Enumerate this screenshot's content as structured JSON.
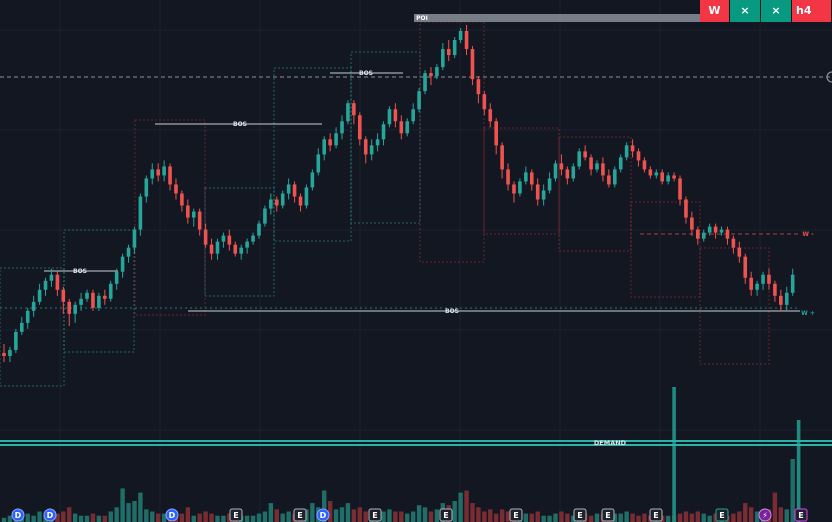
{
  "toolbar": {
    "chips": [
      {
        "label": "W",
        "kind": "w"
      },
      {
        "label": "×",
        "kind": "x"
      },
      {
        "label": "×",
        "kind": "x"
      },
      {
        "label": "h4",
        "kind": "h"
      }
    ]
  },
  "colors": {
    "background": "#131722",
    "grid": "#1e2230",
    "bull": "#26a69a",
    "bear": "#ef5350",
    "vol_bull": "#1f6e67",
    "vol_bear": "#7a2c33",
    "zone_bull": "#26a69a",
    "zone_bear": "#b02a3a",
    "demand": "#2bb3a8",
    "poi": "#8a8f99"
  },
  "chart_data": {
    "type": "candlestick",
    "title": "",
    "y_scale": "price (no axis shown)",
    "grid": true,
    "candles": [
      [
        89,
        88,
        92,
        86
      ],
      [
        88,
        90,
        91,
        86
      ],
      [
        90,
        96,
        97,
        89
      ],
      [
        96,
        99,
        101,
        95
      ],
      [
        99,
        103,
        104,
        97
      ],
      [
        103,
        106,
        108,
        101
      ],
      [
        106,
        110,
        112,
        105
      ],
      [
        110,
        113,
        114,
        108
      ],
      [
        113,
        115,
        117,
        111
      ],
      [
        115,
        110,
        116,
        108
      ],
      [
        110,
        106,
        111,
        102
      ],
      [
        106,
        102,
        107,
        98
      ],
      [
        102,
        105,
        106,
        99
      ],
      [
        105,
        107,
        109,
        103
      ],
      [
        107,
        109,
        110,
        106
      ],
      [
        109,
        104,
        110,
        103
      ],
      [
        104,
        108,
        109,
        103
      ],
      [
        108,
        107,
        110,
        105
      ],
      [
        107,
        112,
        113,
        106
      ],
      [
        112,
        116,
        117,
        110
      ],
      [
        116,
        121,
        122,
        114
      ],
      [
        121,
        124,
        125,
        119
      ],
      [
        124,
        130,
        131,
        122
      ],
      [
        130,
        141,
        142,
        128
      ],
      [
        141,
        147,
        148,
        139
      ],
      [
        147,
        150,
        152,
        145
      ],
      [
        150,
        148,
        152,
        146
      ],
      [
        148,
        151,
        153,
        146
      ],
      [
        151,
        145,
        152,
        143
      ],
      [
        145,
        142,
        147,
        140
      ],
      [
        142,
        138,
        143,
        136
      ],
      [
        138,
        134,
        140,
        132
      ],
      [
        134,
        136,
        137,
        131
      ],
      [
        136,
        130,
        137,
        128
      ],
      [
        130,
        125,
        132,
        124
      ],
      [
        125,
        122,
        127,
        120
      ],
      [
        122,
        126,
        127,
        120
      ],
      [
        126,
        128,
        129,
        124
      ],
      [
        128,
        125,
        130,
        123
      ],
      [
        125,
        122,
        126,
        121
      ],
      [
        122,
        124,
        125,
        120
      ],
      [
        124,
        126,
        127,
        122
      ],
      [
        126,
        128,
        129,
        125
      ],
      [
        128,
        132,
        133,
        127
      ],
      [
        132,
        137,
        138,
        131
      ],
      [
        137,
        140,
        142,
        135
      ],
      [
        140,
        138,
        141,
        136
      ],
      [
        138,
        142,
        143,
        137
      ],
      [
        142,
        145,
        147,
        140
      ],
      [
        145,
        141,
        146,
        139
      ],
      [
        141,
        138,
        142,
        136
      ],
      [
        138,
        144,
        145,
        137
      ],
      [
        144,
        149,
        150,
        143
      ],
      [
        149,
        155,
        157,
        148
      ],
      [
        155,
        160,
        161,
        153
      ],
      [
        160,
        158,
        162,
        156
      ],
      [
        158,
        162,
        164,
        157
      ],
      [
        162,
        166,
        168,
        160
      ],
      [
        166,
        172,
        173,
        165
      ],
      [
        172,
        168,
        173,
        165
      ],
      [
        168,
        160,
        169,
        158
      ],
      [
        160,
        155,
        161,
        152
      ],
      [
        155,
        158,
        160,
        153
      ],
      [
        158,
        160,
        162,
        156
      ],
      [
        160,
        165,
        166,
        158
      ],
      [
        165,
        170,
        171,
        164
      ],
      [
        170,
        166,
        172,
        164
      ],
      [
        166,
        162,
        168,
        160
      ],
      [
        162,
        166,
        167,
        161
      ],
      [
        166,
        170,
        172,
        165
      ],
      [
        170,
        176,
        177,
        169
      ],
      [
        176,
        182,
        183,
        175
      ],
      [
        182,
        181,
        184,
        178
      ],
      [
        181,
        184,
        185,
        180
      ],
      [
        184,
        190,
        192,
        183
      ],
      [
        190,
        188,
        193,
        186
      ],
      [
        188,
        193,
        194,
        187
      ],
      [
        193,
        196,
        197,
        192
      ],
      [
        196,
        190,
        198,
        188
      ],
      [
        190,
        180,
        191,
        178
      ],
      [
        180,
        175,
        181,
        172
      ],
      [
        175,
        170,
        176,
        168
      ],
      [
        170,
        166,
        172,
        164
      ],
      [
        166,
        158,
        167,
        155
      ],
      [
        158,
        150,
        159,
        147
      ],
      [
        150,
        145,
        152,
        143
      ],
      [
        145,
        142,
        146,
        139
      ],
      [
        142,
        146,
        147,
        141
      ],
      [
        146,
        149,
        151,
        145
      ],
      [
        149,
        145,
        150,
        143
      ],
      [
        145,
        140,
        147,
        138
      ],
      [
        140,
        143,
        145,
        138
      ],
      [
        143,
        147,
        149,
        142
      ],
      [
        147,
        152,
        153,
        146
      ],
      [
        152,
        150,
        155,
        148
      ],
      [
        150,
        147,
        151,
        145
      ],
      [
        147,
        151,
        152,
        146
      ],
      [
        151,
        156,
        157,
        150
      ],
      [
        156,
        154,
        158,
        153
      ],
      [
        154,
        150,
        155,
        148
      ],
      [
        150,
        152,
        153,
        149
      ],
      [
        152,
        148,
        154,
        146
      ],
      [
        148,
        145,
        150,
        144
      ],
      [
        145,
        150,
        151,
        144
      ],
      [
        150,
        154,
        155,
        149
      ],
      [
        154,
        158,
        159,
        153
      ],
      [
        158,
        156,
        160,
        154
      ],
      [
        156,
        153,
        157,
        151
      ],
      [
        153,
        150,
        154,
        149
      ],
      [
        150,
        148,
        151,
        147
      ],
      [
        148,
        149,
        150,
        147
      ],
      [
        149,
        146,
        150,
        145
      ],
      [
        146,
        148,
        149,
        145
      ],
      [
        148,
        147,
        149,
        146
      ],
      [
        147,
        140,
        148,
        138
      ],
      [
        140,
        134,
        141,
        132
      ],
      [
        134,
        130,
        136,
        128
      ],
      [
        130,
        127,
        131,
        125
      ],
      [
        127,
        129,
        130,
        126
      ],
      [
        129,
        131,
        132,
        128
      ],
      [
        131,
        129,
        132,
        127
      ],
      [
        129,
        130,
        131,
        128
      ],
      [
        130,
        127,
        131,
        125
      ],
      [
        127,
        124,
        128,
        122
      ],
      [
        124,
        121,
        126,
        119
      ],
      [
        121,
        114,
        122,
        112
      ],
      [
        114,
        110,
        116,
        108
      ],
      [
        110,
        112,
        113,
        108
      ],
      [
        112,
        115,
        116,
        110
      ],
      [
        115,
        112,
        117,
        110
      ],
      [
        112,
        108,
        113,
        106
      ],
      [
        108,
        105,
        110,
        103
      ],
      [
        105,
        109,
        111,
        103
      ],
      [
        109,
        115,
        117,
        108
      ]
    ],
    "volume": [
      [
        2,
        "b"
      ],
      [
        3,
        "b"
      ],
      [
        4,
        "b"
      ],
      [
        3,
        "b"
      ],
      [
        4,
        "b"
      ],
      [
        3,
        "b"
      ],
      [
        5,
        "b"
      ],
      [
        3,
        "b"
      ],
      [
        6,
        "b"
      ],
      [
        4,
        "r"
      ],
      [
        5,
        "r"
      ],
      [
        7,
        "r"
      ],
      [
        4,
        "b"
      ],
      [
        3,
        "b"
      ],
      [
        3,
        "b"
      ],
      [
        4,
        "r"
      ],
      [
        3,
        "b"
      ],
      [
        3,
        "r"
      ],
      [
        5,
        "b"
      ],
      [
        7,
        "b"
      ],
      [
        16,
        "b"
      ],
      [
        9,
        "b"
      ],
      [
        10,
        "b"
      ],
      [
        14,
        "b"
      ],
      [
        6,
        "b"
      ],
      [
        5,
        "b"
      ],
      [
        4,
        "r"
      ],
      [
        4,
        "b"
      ],
      [
        6,
        "r"
      ],
      [
        5,
        "r"
      ],
      [
        4,
        "r"
      ],
      [
        7,
        "r"
      ],
      [
        3,
        "b"
      ],
      [
        4,
        "r"
      ],
      [
        5,
        "r"
      ],
      [
        4,
        "r"
      ],
      [
        3,
        "b"
      ],
      [
        3,
        "b"
      ],
      [
        4,
        "r"
      ],
      [
        3,
        "r"
      ],
      [
        3,
        "b"
      ],
      [
        3,
        "b"
      ],
      [
        3,
        "b"
      ],
      [
        4,
        "b"
      ],
      [
        5,
        "b"
      ],
      [
        9,
        "b"
      ],
      [
        6,
        "r"
      ],
      [
        4,
        "b"
      ],
      [
        5,
        "b"
      ],
      [
        4,
        "r"
      ],
      [
        5,
        "r"
      ],
      [
        6,
        "b"
      ],
      [
        9,
        "b"
      ],
      [
        7,
        "b"
      ],
      [
        15,
        "b"
      ],
      [
        10,
        "r"
      ],
      [
        6,
        "b"
      ],
      [
        7,
        "b"
      ],
      [
        9,
        "b"
      ],
      [
        6,
        "r"
      ],
      [
        7,
        "r"
      ],
      [
        5,
        "r"
      ],
      [
        4,
        "b"
      ],
      [
        4,
        "b"
      ],
      [
        5,
        "b"
      ],
      [
        6,
        "b"
      ],
      [
        5,
        "r"
      ],
      [
        5,
        "r"
      ],
      [
        4,
        "b"
      ],
      [
        5,
        "b"
      ],
      [
        8,
        "b"
      ],
      [
        7,
        "b"
      ],
      [
        5,
        "r"
      ],
      [
        6,
        "b"
      ],
      [
        9,
        "b"
      ],
      [
        8,
        "r"
      ],
      [
        10,
        "b"
      ],
      [
        14,
        "b"
      ],
      [
        15,
        "r"
      ],
      [
        9,
        "r"
      ],
      [
        7,
        "r"
      ],
      [
        5,
        "r"
      ],
      [
        6,
        "r"
      ],
      [
        4,
        "r"
      ],
      [
        6,
        "r"
      ],
      [
        5,
        "r"
      ],
      [
        4,
        "r"
      ],
      [
        3,
        "b"
      ],
      [
        4,
        "b"
      ],
      [
        4,
        "r"
      ],
      [
        5,
        "r"
      ],
      [
        3,
        "b"
      ],
      [
        3,
        "b"
      ],
      [
        4,
        "b"
      ],
      [
        5,
        "r"
      ],
      [
        4,
        "r"
      ],
      [
        3,
        "b"
      ],
      [
        5,
        "b"
      ],
      [
        4,
        "r"
      ],
      [
        3,
        "r"
      ],
      [
        4,
        "b"
      ],
      [
        4,
        "r"
      ],
      [
        3,
        "r"
      ],
      [
        4,
        "b"
      ],
      [
        4,
        "b"
      ],
      [
        5,
        "b"
      ],
      [
        4,
        "r"
      ],
      [
        3,
        "r"
      ],
      [
        4,
        "r"
      ],
      [
        3,
        "r"
      ],
      [
        3,
        "b"
      ],
      [
        3,
        "r"
      ],
      [
        3,
        "b"
      ],
      [
        3,
        "r"
      ],
      [
        4,
        "r"
      ],
      [
        5,
        "r"
      ],
      [
        4,
        "r"
      ],
      [
        5,
        "r"
      ],
      [
        4,
        "b"
      ],
      [
        3,
        "b"
      ],
      [
        4,
        "r"
      ],
      [
        3,
        "b"
      ],
      [
        3,
        "r"
      ],
      [
        4,
        "r"
      ],
      [
        5,
        "r"
      ],
      [
        9,
        "r"
      ],
      [
        7,
        "r"
      ],
      [
        5,
        "b"
      ],
      [
        4,
        "b"
      ],
      [
        6,
        "r"
      ],
      [
        14,
        "r"
      ],
      [
        7,
        "r"
      ],
      [
        6,
        "b"
      ],
      [
        30,
        "b"
      ]
    ],
    "demand_volume_spikes": [
      [
        113,
        45
      ],
      [
        134,
        34
      ]
    ],
    "annotations": [
      {
        "text": "BOS"
      },
      {
        "text": "BOS"
      },
      {
        "text": "BOS"
      },
      {
        "text": "BOS"
      },
      {
        "text": "POI"
      },
      {
        "text": "DEMAND"
      },
      {
        "text": "W -"
      },
      {
        "text": "W +"
      }
    ],
    "event_markers": [
      "D",
      "D",
      "D",
      "E",
      "E",
      "D",
      "E",
      "E",
      "E",
      "E",
      "E",
      "E",
      "E",
      "⚡",
      "E"
    ]
  }
}
